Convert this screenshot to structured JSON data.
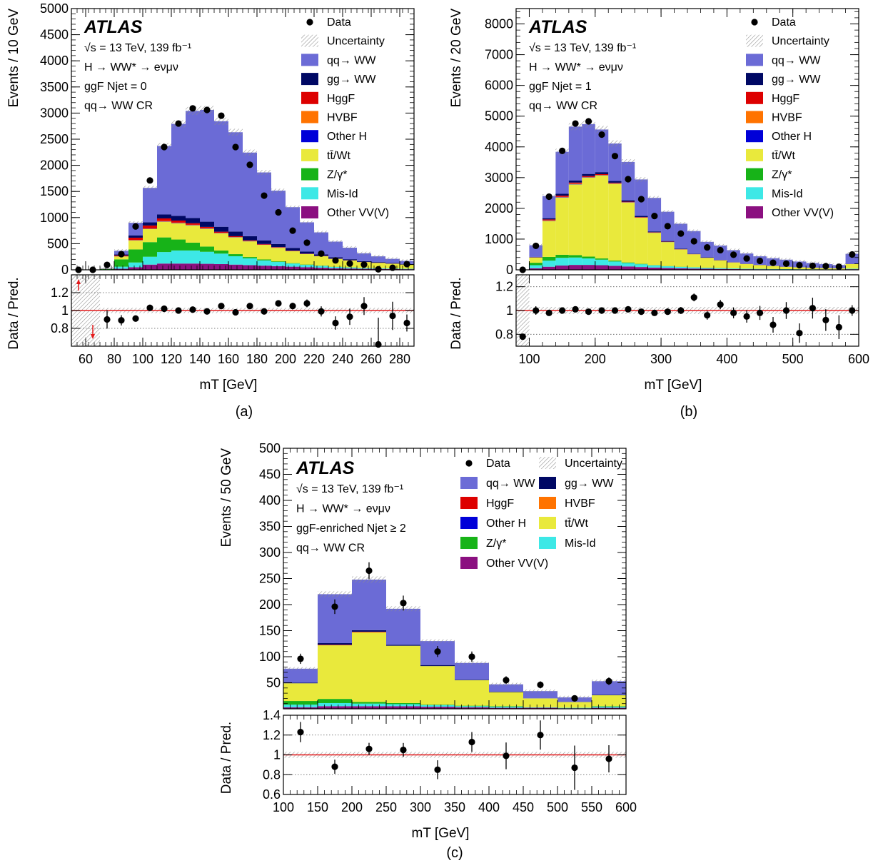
{
  "colors": {
    "qqWW": "#6b6bd6",
    "ggWW": "#000864",
    "HggF": "#dd0000",
    "HVBF": "#ff7300",
    "OtherH": "#0000d8",
    "ttWt": "#e9e93c",
    "Zgamma": "#17b318",
    "MisId": "#3de8e6",
    "OtherVV": "#8b1080",
    "ratio_line": "#e41a1c",
    "hatch": "#8c8c8c"
  },
  "legend": {
    "data": "Data",
    "uncertainty": "Uncertainty",
    "qqWW": "qq→ WW",
    "ggWW": "gg→ WW",
    "HggF": "HggF",
    "HVBF": "HVBF",
    "OtherH": "Other H",
    "ttWt": "tt̄/Wt",
    "Zgamma": "Z/γ*",
    "MisId": "Mis-Id",
    "OtherVV": "Other VV(V)"
  },
  "chart_data": [
    {
      "type": "bar",
      "panel": "(a)",
      "atlas": "ATLAS",
      "info": [
        "√s = 13 TeV, 139 fb⁻¹",
        "H → WW* → eνμν",
        "ggF Njet = 0",
        "qq→ WW CR"
      ],
      "xlabel": "mT [GeV]",
      "ylabel": "Events / 10 GeV",
      "ratio_ylabel": "Data / Pred.",
      "xlim": [
        50,
        290
      ],
      "ylim": [
        0,
        5000
      ],
      "ratio_ylim": [
        0.6,
        1.4
      ],
      "xticks": [
        60,
        80,
        100,
        120,
        140,
        160,
        180,
        200,
        220,
        240,
        260,
        280
      ],
      "yticks": [
        500,
        1000,
        1500,
        2000,
        2500,
        3000,
        3500,
        4000,
        4500,
        5000
      ],
      "yticks_zero": "0",
      "ratio_yticks": [
        0.8,
        1,
        1.2
      ],
      "bin_edges": [
        50,
        60,
        70,
        80,
        90,
        100,
        110,
        120,
        130,
        140,
        150,
        160,
        170,
        180,
        190,
        200,
        210,
        220,
        230,
        240,
        250,
        260,
        270,
        280,
        290
      ],
      "stack": {
        "OtherVV": [
          0,
          0,
          0,
          20,
          50,
          100,
          120,
          120,
          120,
          115,
          110,
          100,
          90,
          80,
          70,
          60,
          50,
          40,
          30,
          25,
          20,
          18,
          15,
          12
        ],
        "MisId": [
          0,
          0,
          5,
          40,
          90,
          150,
          220,
          250,
          250,
          230,
          200,
          160,
          130,
          100,
          80,
          60,
          45,
          35,
          25,
          20,
          15,
          12,
          10,
          8
        ],
        "Zgamma": [
          0,
          0,
          10,
          140,
          250,
          280,
          280,
          210,
          150,
          100,
          60,
          40,
          25,
          18,
          12,
          8,
          6,
          5,
          4,
          3,
          2,
          2,
          1,
          1
        ],
        "ttWt": [
          0,
          0,
          5,
          55,
          170,
          250,
          300,
          310,
          330,
          340,
          330,
          320,
          300,
          280,
          260,
          230,
          200,
          180,
          150,
          130,
          110,
          100,
          90,
          80
        ],
        "OtherH": [
          0,
          0,
          0,
          2,
          4,
          5,
          6,
          6,
          6,
          6,
          5,
          5,
          4,
          4,
          3,
          3,
          2,
          2,
          2,
          1,
          1,
          1,
          1,
          1
        ],
        "HVBF": [
          0,
          0,
          0,
          3,
          6,
          8,
          8,
          7,
          6,
          5,
          4,
          3,
          3,
          2,
          2,
          2,
          1,
          1,
          1,
          1,
          1,
          1,
          1,
          0
        ],
        "HggF": [
          0,
          0,
          0,
          15,
          45,
          55,
          50,
          40,
          30,
          25,
          20,
          15,
          12,
          10,
          8,
          6,
          5,
          4,
          3,
          3,
          2,
          2,
          2,
          1
        ],
        "ggWW": [
          0,
          0,
          0,
          20,
          45,
          60,
          75,
          90,
          100,
          100,
          95,
          90,
          80,
          70,
          60,
          50,
          40,
          30,
          25,
          20,
          15,
          12,
          10,
          8
        ],
        "qqWW": [
          0,
          0,
          10,
          70,
          240,
          660,
          1310,
          1760,
          2050,
          2140,
          2020,
          1900,
          1600,
          1300,
          1020,
          780,
          560,
          420,
          300,
          220,
          150,
          110,
          80,
          60
        ]
      },
      "data_points": [
        {
          "x": 55,
          "y": 0,
          "ratio": null
        },
        {
          "x": 65,
          "y": 0,
          "ratio": null
        },
        {
          "x": 75,
          "y": 95,
          "ratio": 0.9
        },
        {
          "x": 85,
          "y": 300,
          "ratio": 0.89
        },
        {
          "x": 95,
          "y": 830,
          "ratio": 0.91
        },
        {
          "x": 105,
          "y": 1710,
          "ratio": 1.03
        },
        {
          "x": 115,
          "y": 2350,
          "ratio": 1.02
        },
        {
          "x": 125,
          "y": 2800,
          "ratio": 1.0
        },
        {
          "x": 135,
          "y": 3090,
          "ratio": 1.01
        },
        {
          "x": 145,
          "y": 3060,
          "ratio": 0.99
        },
        {
          "x": 155,
          "y": 2950,
          "ratio": 1.05
        },
        {
          "x": 165,
          "y": 2350,
          "ratio": 0.98
        },
        {
          "x": 175,
          "y": 2010,
          "ratio": 1.05
        },
        {
          "x": 185,
          "y": 1420,
          "ratio": 0.99
        },
        {
          "x": 195,
          "y": 1100,
          "ratio": 1.08
        },
        {
          "x": 205,
          "y": 750,
          "ratio": 1.05
        },
        {
          "x": 215,
          "y": 520,
          "ratio": 1.08
        },
        {
          "x": 225,
          "y": 310,
          "ratio": 0.99
        },
        {
          "x": 235,
          "y": 180,
          "ratio": 0.86
        },
        {
          "x": 245,
          "y": 120,
          "ratio": 0.93
        },
        {
          "x": 255,
          "y": 100,
          "ratio": 1.05
        },
        {
          "x": 265,
          "y": 10,
          "ratio": 0.62
        },
        {
          "x": 275,
          "y": 40,
          "ratio": 0.94
        },
        {
          "x": 285,
          "y": 110,
          "ratio": 0.86
        }
      ],
      "ratio_arrows": [
        {
          "x": 55,
          "dir": "up"
        },
        {
          "x": 65,
          "dir": "down"
        }
      ]
    },
    {
      "type": "bar",
      "panel": "(b)",
      "atlas": "ATLAS",
      "info": [
        "√s = 13 TeV, 139 fb⁻¹",
        "H → WW* → eνμν",
        "ggF Njet = 1",
        "qq→ WW CR"
      ],
      "xlabel": "mT [GeV]",
      "ylabel": "Events / 20 GeV",
      "ratio_ylabel": "Data / Pred.",
      "xlim": [
        80,
        600
      ],
      "ylim": [
        0,
        8500
      ],
      "ratio_ylim": [
        0.7,
        1.3
      ],
      "xticks": [
        100,
        200,
        300,
        400,
        500,
        600
      ],
      "yticks": [
        1000,
        2000,
        3000,
        4000,
        5000,
        6000,
        7000,
        8000
      ],
      "yticks_zero": "0",
      "ratio_yticks": [
        0.8,
        1,
        1.2
      ],
      "bin_edges": [
        80,
        100,
        120,
        140,
        160,
        180,
        200,
        220,
        240,
        260,
        280,
        300,
        320,
        340,
        360,
        380,
        400,
        420,
        440,
        460,
        480,
        500,
        520,
        540,
        560,
        580,
        600
      ],
      "stack": {
        "OtherVV": [
          0,
          50,
          100,
          140,
          160,
          160,
          150,
          130,
          110,
          90,
          75,
          60,
          50,
          42,
          35,
          30,
          25,
          20,
          18,
          15,
          12,
          10,
          9,
          8,
          7,
          20
        ],
        "MisId": [
          0,
          100,
          200,
          250,
          240,
          210,
          180,
          140,
          110,
          90,
          70,
          55,
          45,
          38,
          30,
          25,
          20,
          17,
          14,
          12,
          10,
          9,
          8,
          7,
          6,
          15
        ],
        "Zgamma": [
          0,
          80,
          120,
          100,
          80,
          60,
          40,
          30,
          20,
          15,
          10,
          8,
          6,
          5,
          4,
          3,
          3,
          2,
          2,
          2,
          1,
          1,
          1,
          1,
          1,
          2
        ],
        "ttWt": [
          0,
          170,
          1170,
          1860,
          2300,
          2570,
          2700,
          2500,
          1950,
          1500,
          1050,
          780,
          560,
          420,
          320,
          250,
          190,
          150,
          120,
          95,
          75,
          60,
          50,
          40,
          35,
          150
        ],
        "OtherH": [
          0,
          2,
          10,
          12,
          12,
          10,
          9,
          8,
          6,
          5,
          4,
          3,
          3,
          2,
          2,
          2,
          1,
          1,
          1,
          1,
          1,
          1,
          0,
          0,
          0,
          1
        ],
        "HVBF": [
          0,
          2,
          10,
          12,
          12,
          10,
          9,
          7,
          6,
          5,
          4,
          3,
          3,
          2,
          2,
          2,
          1,
          1,
          1,
          1,
          1,
          1,
          0,
          0,
          0,
          1
        ],
        "HggF": [
          0,
          5,
          30,
          40,
          35,
          30,
          25,
          20,
          15,
          12,
          9,
          7,
          5,
          4,
          3,
          3,
          2,
          2,
          2,
          1,
          1,
          1,
          1,
          1,
          1,
          2
        ],
        "ggWW": [
          0,
          10,
          40,
          60,
          70,
          70,
          65,
          55,
          45,
          36,
          28,
          22,
          17,
          13,
          10,
          8,
          6,
          5,
          4,
          3,
          3,
          2,
          2,
          2,
          1,
          5
        ],
        "qqWW": [
          0,
          381,
          720,
          1366,
          1751,
          1620,
          1387,
          1220,
          1248,
          1187,
          1090,
          952,
          811,
          734,
          504,
          467,
          392,
          333,
          278,
          247,
          227,
          185,
          150,
          126,
          105,
          324
        ]
      },
      "data_points": [
        {
          "x": 90,
          "y": 0,
          "ratio": 0.78
        },
        {
          "x": 110,
          "y": 780,
          "ratio": 1.0
        },
        {
          "x": 130,
          "y": 2380,
          "ratio": 0.98
        },
        {
          "x": 150,
          "y": 3870,
          "ratio": 1.0
        },
        {
          "x": 170,
          "y": 4760,
          "ratio": 1.01
        },
        {
          "x": 190,
          "y": 4830,
          "ratio": 0.99
        },
        {
          "x": 210,
          "y": 4400,
          "ratio": 1.0
        },
        {
          "x": 230,
          "y": 3700,
          "ratio": 1.0
        },
        {
          "x": 250,
          "y": 2950,
          "ratio": 1.01
        },
        {
          "x": 270,
          "y": 2300,
          "ratio": 0.99
        },
        {
          "x": 290,
          "y": 1750,
          "ratio": 0.98
        },
        {
          "x": 310,
          "y": 1420,
          "ratio": 0.99
        },
        {
          "x": 330,
          "y": 1180,
          "ratio": 1.0
        },
        {
          "x": 350,
          "y": 930,
          "ratio": 1.11
        },
        {
          "x": 370,
          "y": 730,
          "ratio": 0.96
        },
        {
          "x": 390,
          "y": 640,
          "ratio": 1.05
        },
        {
          "x": 410,
          "y": 490,
          "ratio": 0.98
        },
        {
          "x": 430,
          "y": 370,
          "ratio": 0.95
        },
        {
          "x": 450,
          "y": 290,
          "ratio": 0.98
        },
        {
          "x": 470,
          "y": 230,
          "ratio": 0.88
        },
        {
          "x": 490,
          "y": 200,
          "ratio": 1.0
        },
        {
          "x": 510,
          "y": 150,
          "ratio": 0.81
        },
        {
          "x": 530,
          "y": 130,
          "ratio": 1.02
        },
        {
          "x": 550,
          "y": 120,
          "ratio": 0.92
        },
        {
          "x": 570,
          "y": 100,
          "ratio": 0.86
        },
        {
          "x": 590,
          "y": 500,
          "ratio": 1.0
        }
      ]
    },
    {
      "type": "bar",
      "panel": "(c)",
      "atlas": "ATLAS",
      "info": [
        "√s = 13 TeV, 139 fb⁻¹",
        "H → WW* → eνμν",
        "ggF-enriched Njet ≥ 2",
        "qq→ WW CR"
      ],
      "xlabel": "mT [GeV]",
      "ylabel": "Events / 50 GeV",
      "ratio_ylabel": "Data / Pred.",
      "xlim": [
        100,
        600
      ],
      "ylim": [
        0,
        500
      ],
      "ratio_ylim": [
        0.6,
        1.4
      ],
      "xticks": [
        100,
        150,
        200,
        250,
        300,
        350,
        400,
        450,
        500,
        550,
        600
      ],
      "yticks": [
        50,
        100,
        150,
        200,
        250,
        300,
        350,
        400,
        450,
        500
      ],
      "ratio_yticks": [
        0.6,
        0.8,
        1,
        1.2,
        1.4
      ],
      "bin_edges": [
        100,
        150,
        200,
        250,
        300,
        350,
        400,
        450,
        500,
        550,
        600
      ],
      "stack": {
        "OtherVV": [
          3,
          5,
          5,
          5,
          4,
          3,
          2,
          2,
          1,
          2
        ],
        "MisId": [
          5,
          6,
          5,
          4,
          3,
          2,
          2,
          1,
          1,
          2
        ],
        "Zgamma": [
          7,
          8,
          3,
          2,
          1,
          1,
          1,
          0,
          0,
          1
        ],
        "ttWt": [
          34,
          103,
          134,
          110,
          74,
          49,
          27,
          17,
          11,
          21
        ],
        "OtherH": [
          0,
          0,
          0,
          0,
          0,
          0,
          0,
          0,
          0,
          0
        ],
        "HVBF": [
          0,
          0,
          0,
          0,
          0,
          0,
          0,
          0,
          0,
          0
        ],
        "HggF": [
          0,
          1,
          1,
          0,
          0,
          0,
          0,
          0,
          0,
          0
        ],
        "ggWW": [
          1,
          3,
          3,
          2,
          2,
          1,
          1,
          0,
          0,
          1
        ],
        "qqWW": [
          27,
          94,
          97,
          69,
          46,
          32,
          14,
          14,
          9,
          26
        ]
      },
      "data_points": [
        {
          "x": 125,
          "y": 96,
          "ratio": 1.23
        },
        {
          "x": 175,
          "y": 196,
          "ratio": 0.88
        },
        {
          "x": 225,
          "y": 265,
          "ratio": 1.06
        },
        {
          "x": 275,
          "y": 203,
          "ratio": 1.05
        },
        {
          "x": 325,
          "y": 110,
          "ratio": 0.85
        },
        {
          "x": 375,
          "y": 100,
          "ratio": 1.13
        },
        {
          "x": 425,
          "y": 55,
          "ratio": 0.99
        },
        {
          "x": 475,
          "y": 46,
          "ratio": 1.2
        },
        {
          "x": 525,
          "y": 20,
          "ratio": 0.87
        },
        {
          "x": 575,
          "y": 53,
          "ratio": 0.96
        }
      ]
    }
  ]
}
